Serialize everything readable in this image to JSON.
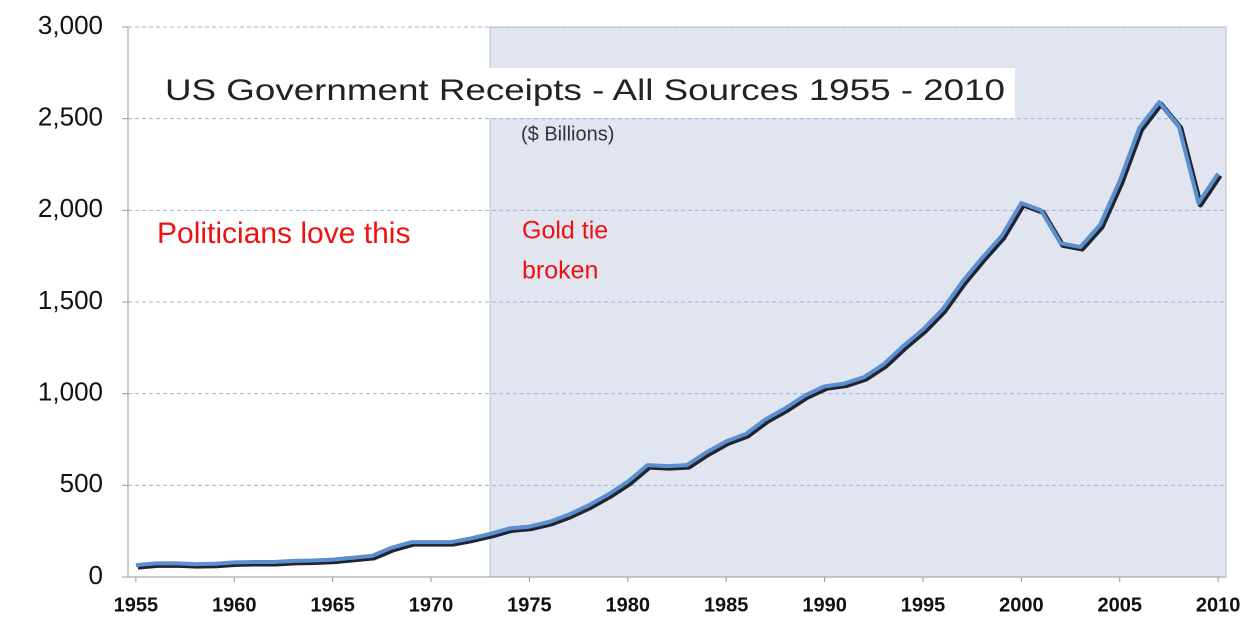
{
  "chart_data": {
    "type": "line",
    "title": "US Government  Receipts -  All  Sources 1955 - 2010",
    "subtitle": "($ Billions)",
    "annotations": [
      {
        "lines": [
          "Politicians love this"
        ]
      },
      {
        "lines": [
          "Gold tie",
          "broken"
        ]
      }
    ],
    "shaded_region": [
      1973,
      2010.4
    ],
    "x": [
      1955,
      1956,
      1957,
      1958,
      1959,
      1960,
      1961,
      1962,
      1963,
      1964,
      1965,
      1966,
      1967,
      1968,
      1969,
      1970,
      1971,
      1972,
      1973,
      1974,
      1975,
      1976,
      1977,
      1978,
      1979,
      1980,
      1981,
      1982,
      1983,
      1984,
      1985,
      1986,
      1987,
      1988,
      1989,
      1990,
      1991,
      1992,
      1993,
      1994,
      1995,
      1996,
      1997,
      1998,
      1999,
      2000,
      2001,
      2002,
      2003,
      2004,
      2005,
      2006,
      2007,
      2008,
      2009,
      2010
    ],
    "series": [
      {
        "name": "Receipts",
        "color": "#5b8fd0",
        "values": [
          65,
          74,
          75,
          70,
          72,
          80,
          82,
          82,
          88,
          90,
          95,
          105,
          115,
          160,
          190,
          190,
          190,
          210,
          235,
          265,
          275,
          300,
          340,
          390,
          450,
          520,
          610,
          605,
          610,
          680,
          740,
          780,
          860,
          920,
          990,
          1040,
          1055,
          1090,
          1160,
          1260,
          1350,
          1460,
          1610,
          1740,
          1860,
          2040,
          2000,
          1820,
          1800,
          1920,
          2160,
          2450,
          2590,
          2460,
          2040,
          2200
        ]
      }
    ],
    "xlim": [
      1954.6,
      2010.4
    ],
    "xticks": [
      1955,
      1960,
      1965,
      1970,
      1975,
      1980,
      1985,
      1990,
      1995,
      2000,
      2005,
      2010
    ],
    "ylim": [
      0,
      3000
    ],
    "yticks": [
      0,
      500,
      {
        "value": 1000,
        "label": "1,000"
      },
      {
        "value": 1500,
        "label": "1,500"
      },
      {
        "value": 2000,
        "label": "2,000"
      },
      {
        "value": 2500,
        "label": "2,500"
      },
      {
        "value": 3000,
        "label": "3,000"
      }
    ],
    "grid": true
  }
}
